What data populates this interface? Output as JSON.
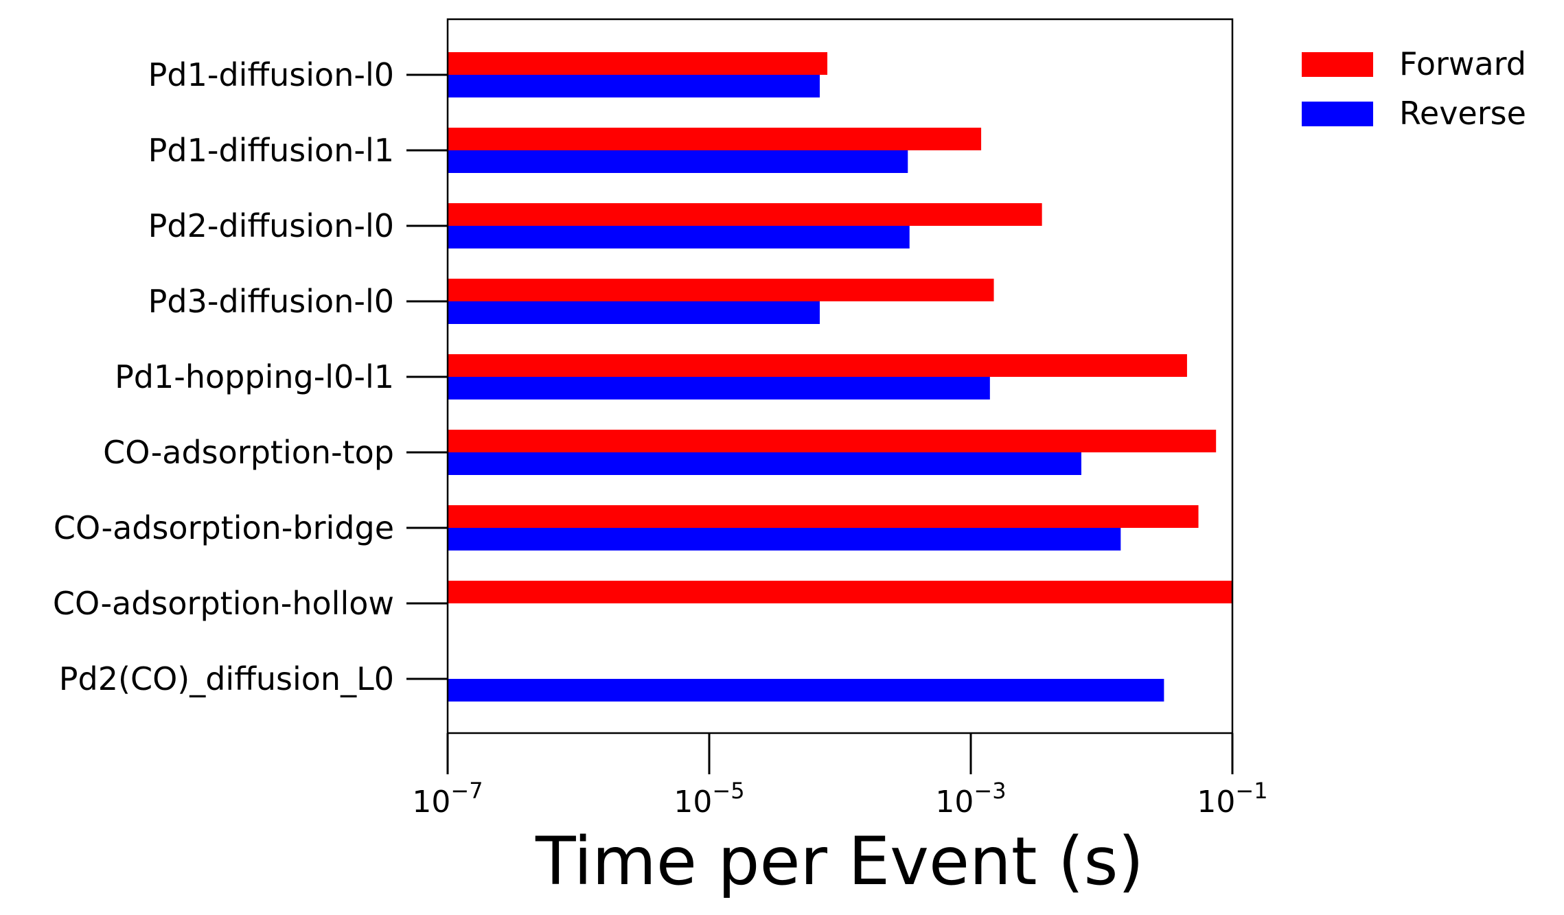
{
  "chart_data": {
    "type": "bar",
    "orientation": "horizontal",
    "categories": [
      "Pd1-diffusion-l0",
      "Pd1-diffusion-l1",
      "Pd2-diffusion-l0",
      "Pd3-diffusion-l0",
      "Pd1-hopping-l0-l1",
      "CO-adsorption-top",
      "CO-adsorption-bridge",
      "CO-adsorption-hollow",
      "Pd2(CO)_diffusion_L0"
    ],
    "series": [
      {
        "name": "Forward",
        "color": "#ff0000",
        "values": [
          8e-05,
          0.0012,
          0.0035,
          0.0015,
          0.045,
          0.075,
          0.055,
          0.1,
          null
        ]
      },
      {
        "name": "Reverse",
        "color": "#0000ff",
        "values": [
          7e-05,
          0.00033,
          0.00034,
          7e-05,
          0.0014,
          0.007,
          0.014,
          null,
          0.03
        ]
      }
    ],
    "xlabel": "Time per Event (s)",
    "xscale": "log",
    "xlim": [
      1e-07,
      0.1
    ],
    "xticks": [
      {
        "value": 1e-07,
        "base": "10",
        "exp": "−7"
      },
      {
        "value": 1e-05,
        "base": "10",
        "exp": "−5"
      },
      {
        "value": 0.001,
        "base": "10",
        "exp": "−3"
      },
      {
        "value": 0.1,
        "base": "10",
        "exp": "−1"
      }
    ],
    "grid": false,
    "legend_position": "outside-top-right"
  }
}
